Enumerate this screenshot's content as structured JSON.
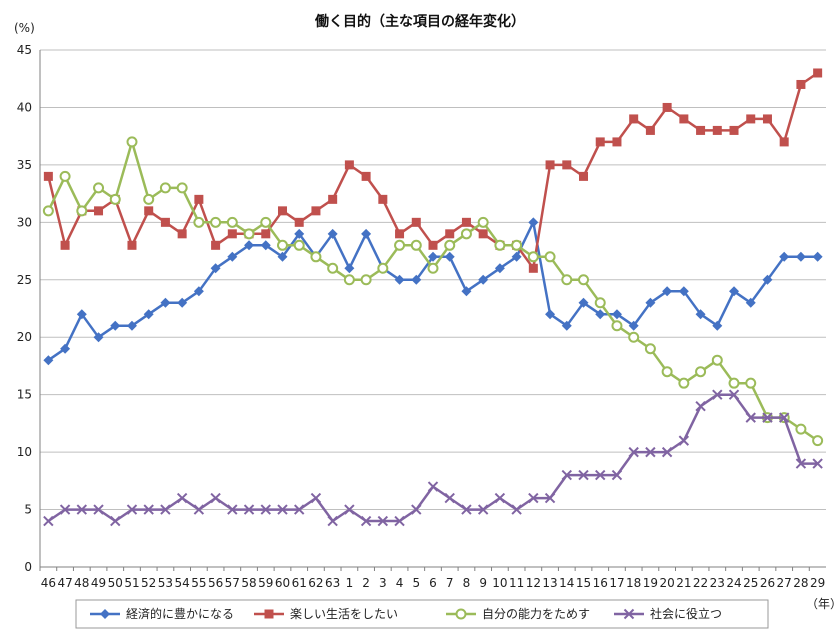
{
  "chart_data": {
    "type": "line",
    "title": "働く目的（主な項目の経年変化）",
    "ylabel": "(%)",
    "xlabel": "（年）",
    "ylim": [
      0,
      45
    ],
    "yticks": [
      0,
      5,
      10,
      15,
      20,
      25,
      30,
      35,
      40,
      45
    ],
    "grid": true,
    "legend_position": "bottom",
    "categories": [
      "46",
      "47",
      "48",
      "49",
      "50",
      "51",
      "52",
      "53",
      "54",
      "55",
      "56",
      "57",
      "58",
      "59",
      "60",
      "61",
      "62",
      "63",
      "1",
      "2",
      "3",
      "4",
      "5",
      "6",
      "7",
      "8",
      "9",
      "10",
      "11",
      "12",
      "13",
      "14",
      "15",
      "16",
      "17",
      "18",
      "19",
      "20",
      "21",
      "22",
      "23",
      "24",
      "25",
      "26",
      "27",
      "28",
      "29"
    ],
    "series": [
      {
        "name": "経済的に豊かになる",
        "color": "#4472c4",
        "marker": "diamond",
        "values": [
          18,
          19,
          22,
          20,
          21,
          21,
          22,
          23,
          23,
          24,
          26,
          27,
          28,
          28,
          27,
          29,
          27,
          29,
          26,
          29,
          26,
          25,
          25,
          27,
          27,
          24,
          25,
          26,
          27,
          30,
          22,
          21,
          23,
          22,
          22,
          21,
          23,
          24,
          24,
          22,
          21,
          24,
          23,
          25,
          27,
          27,
          27
        ]
      },
      {
        "name": "楽しい生活をしたい",
        "color": "#c0504d",
        "marker": "square",
        "values": [
          34,
          28,
          31,
          31,
          32,
          28,
          31,
          30,
          29,
          32,
          28,
          29,
          29,
          29,
          31,
          30,
          31,
          32,
          35,
          34,
          32,
          29,
          30,
          28,
          29,
          30,
          29,
          28,
          28,
          26,
          35,
          35,
          34,
          37,
          37,
          39,
          38,
          40,
          39,
          38,
          38,
          38,
          39,
          39,
          37,
          42,
          43
        ]
      },
      {
        "name": "自分の能力をためす",
        "color": "#9bbb59",
        "marker": "circle",
        "values": [
          31,
          34,
          31,
          33,
          32,
          37,
          32,
          33,
          33,
          30,
          30,
          30,
          29,
          30,
          28,
          28,
          27,
          26,
          25,
          25,
          26,
          28,
          28,
          26,
          28,
          29,
          30,
          28,
          28,
          27,
          27,
          25,
          25,
          23,
          21,
          20,
          19,
          17,
          16,
          17,
          18,
          16,
          16,
          13,
          13,
          12,
          11
        ]
      },
      {
        "name": "社会に役立つ",
        "color": "#8064a2",
        "marker": "x",
        "values": [
          4,
          5,
          5,
          5,
          4,
          5,
          5,
          5,
          6,
          5,
          6,
          5,
          5,
          5,
          5,
          5,
          6,
          4,
          5,
          4,
          4,
          4,
          5,
          7,
          6,
          5,
          5,
          6,
          5,
          6,
          6,
          8,
          8,
          8,
          8,
          10,
          10,
          10,
          11,
          14,
          15,
          15,
          13,
          13,
          13,
          9,
          9
        ]
      }
    ]
  }
}
